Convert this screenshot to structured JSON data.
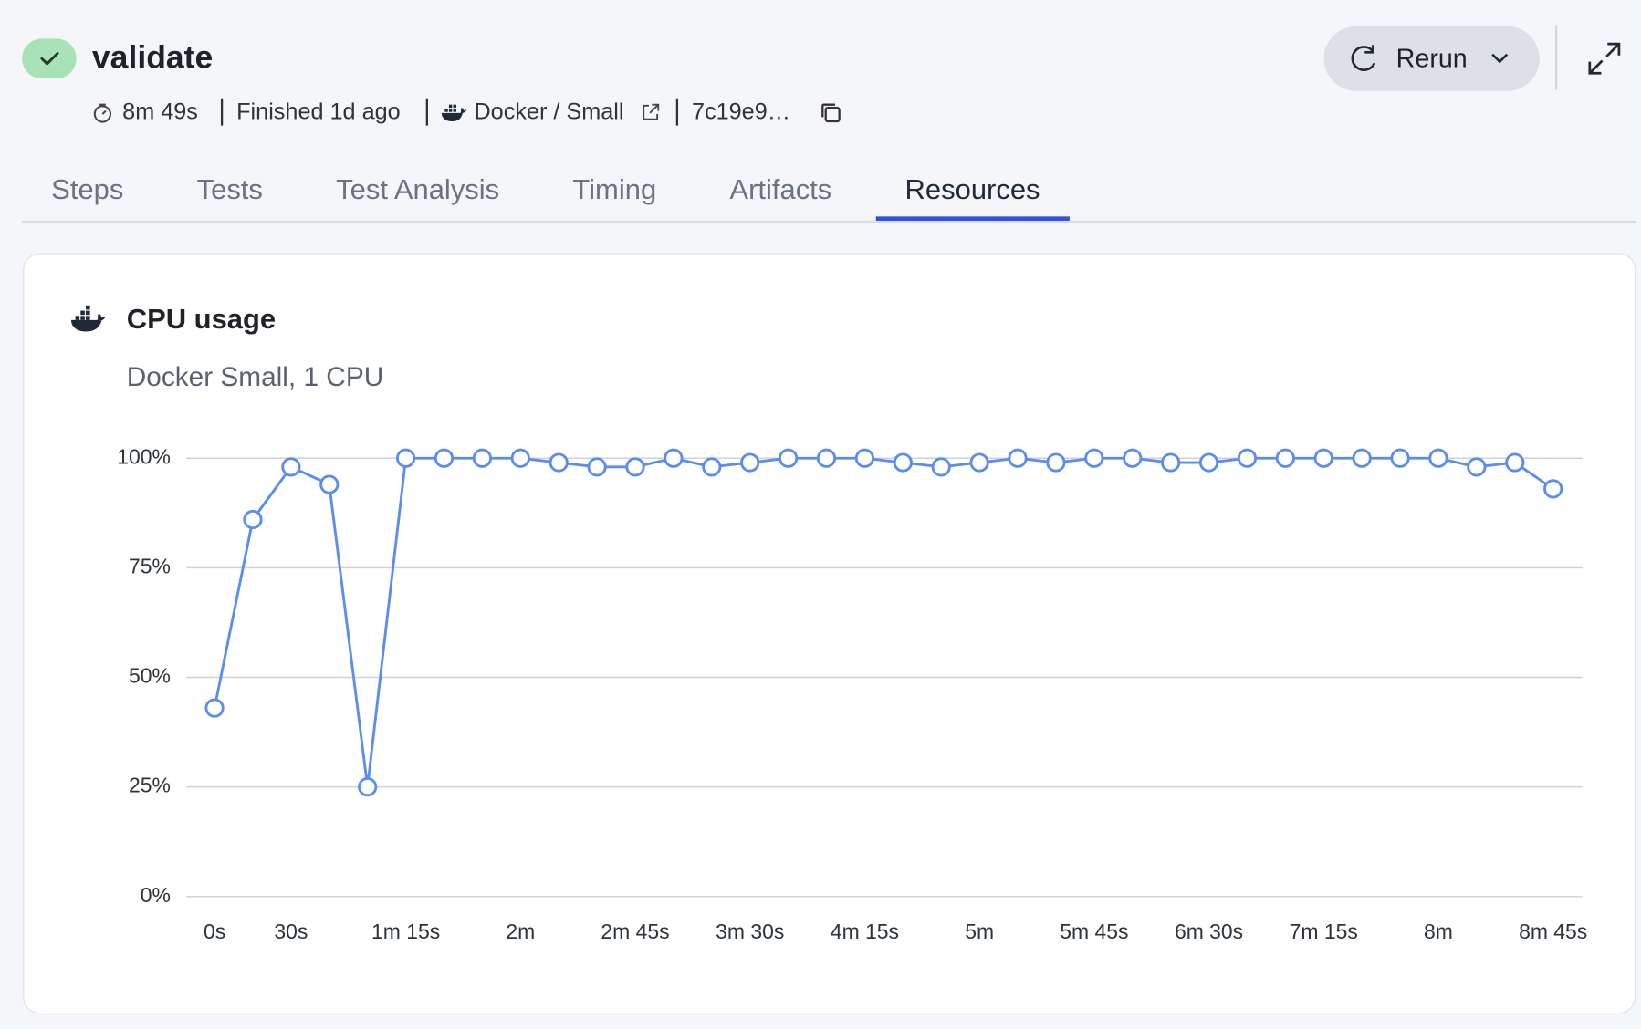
{
  "header": {
    "title": "validate",
    "duration": "8m 49s",
    "finished": "Finished 1d ago",
    "machine": "Docker / Small",
    "commit": "7c19e9…",
    "rerun": "Rerun"
  },
  "tabs": [
    "Steps",
    "Tests",
    "Test Analysis",
    "Timing",
    "Artifacts",
    "Resources"
  ],
  "active_tab": 5,
  "chart_data": {
    "type": "line",
    "title": "CPU usage",
    "subtitle": "Docker Small, 1 CPU",
    "categories": [
      "0s",
      null,
      "30s",
      null,
      null,
      "1m 15s",
      null,
      null,
      "2m",
      null,
      null,
      "2m 45s",
      null,
      null,
      "3m 30s",
      null,
      null,
      "4m 15s",
      null,
      null,
      "5m",
      null,
      null,
      "5m 45s",
      null,
      null,
      "6m 30s",
      null,
      null,
      "7m 15s",
      null,
      null,
      "8m",
      null,
      null,
      "8m 45s"
    ],
    "values": [
      43,
      86,
      98,
      94,
      25,
      100,
      100,
      100,
      100,
      99,
      98,
      98,
      100,
      98,
      99,
      100,
      100,
      100,
      99,
      98,
      99,
      100,
      99,
      100,
      100,
      99,
      99,
      100,
      100,
      100,
      100,
      100,
      100,
      98,
      99,
      93
    ],
    "color": "#5b8def",
    "ylim": [
      0,
      100
    ],
    "yticks": [
      {
        "value": 0,
        "label": "0%"
      },
      {
        "value": 25,
        "label": "25%"
      },
      {
        "value": 50,
        "label": "50%"
      },
      {
        "value": 75,
        "label": "75%"
      },
      {
        "value": 100,
        "label": "100%"
      }
    ],
    "grid": true
  }
}
